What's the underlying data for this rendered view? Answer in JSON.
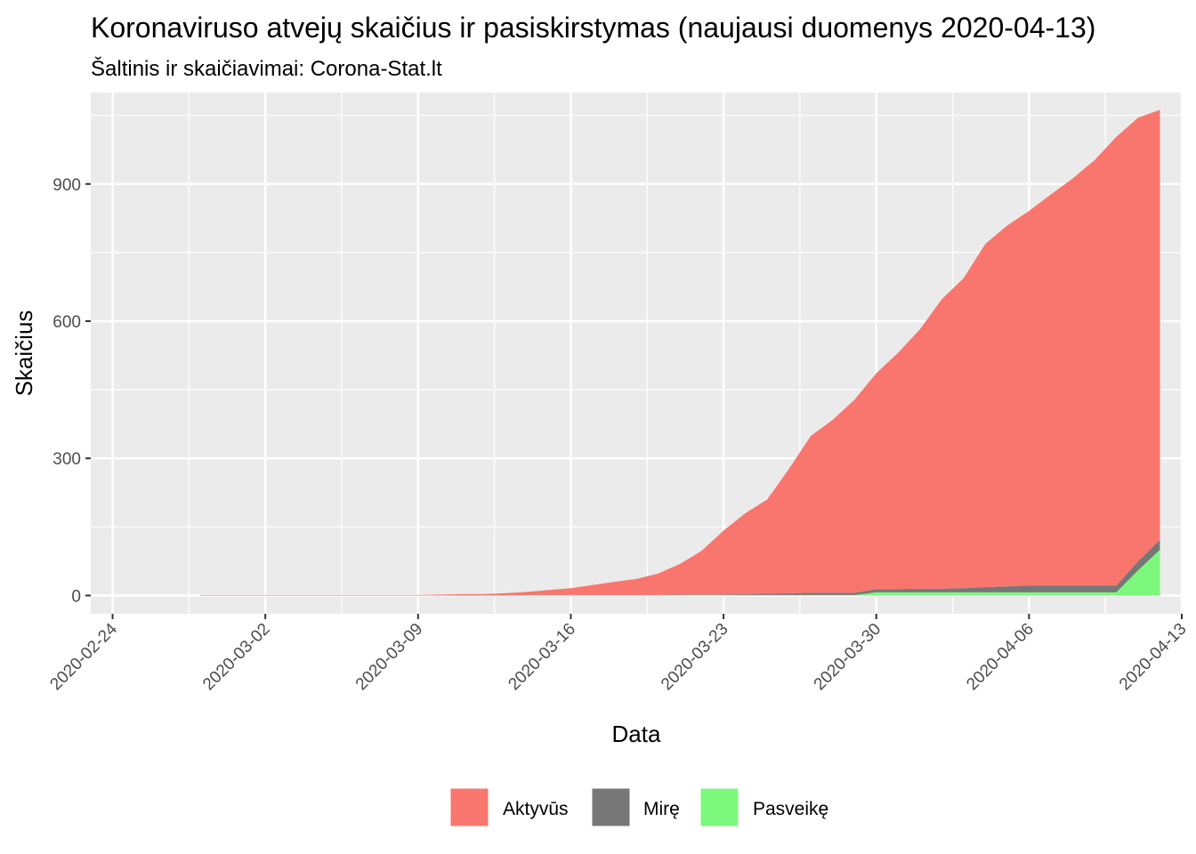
{
  "chart_data": {
    "type": "area",
    "stacked": true,
    "title": "Koronaviruso atvejų skaičius ir pasiskirstymas (naujausi duomenys 2020-04-13)",
    "subtitle": "Šaltinis ir skaičiavimai: Corona-Stat.lt",
    "xlabel": "Data",
    "ylabel": "Skaičius",
    "xlim": [
      "2020-02-23",
      "2020-04-13"
    ],
    "ylim": [
      -40,
      1100
    ],
    "x_ticks": [
      "2020-02-24",
      "2020-03-02",
      "2020-03-09",
      "2020-03-16",
      "2020-03-23",
      "2020-03-30",
      "2020-04-06",
      "2020-04-13"
    ],
    "y_ticks": [
      0,
      300,
      600,
      900
    ],
    "grid": true,
    "legend_position": "bottom",
    "x": [
      "2020-02-28",
      "2020-02-29",
      "2020-03-01",
      "2020-03-02",
      "2020-03-03",
      "2020-03-04",
      "2020-03-05",
      "2020-03-06",
      "2020-03-07",
      "2020-03-08",
      "2020-03-09",
      "2020-03-10",
      "2020-03-11",
      "2020-03-12",
      "2020-03-13",
      "2020-03-14",
      "2020-03-15",
      "2020-03-16",
      "2020-03-17",
      "2020-03-18",
      "2020-03-19",
      "2020-03-20",
      "2020-03-21",
      "2020-03-22",
      "2020-03-23",
      "2020-03-24",
      "2020-03-25",
      "2020-03-26",
      "2020-03-27",
      "2020-03-28",
      "2020-03-29",
      "2020-03-30",
      "2020-03-31",
      "2020-04-01",
      "2020-04-02",
      "2020-04-03",
      "2020-04-04",
      "2020-04-05",
      "2020-04-06",
      "2020-04-07",
      "2020-04-08",
      "2020-04-09",
      "2020-04-10",
      "2020-04-11",
      "2020-04-12"
    ],
    "series": [
      {
        "name": "Pasveikę",
        "color": "#7CF97C",
        "values": [
          0,
          0,
          0,
          0,
          0,
          0,
          0,
          0,
          0,
          0,
          0,
          0,
          0,
          0,
          0,
          1,
          1,
          1,
          1,
          1,
          1,
          1,
          1,
          1,
          1,
          1,
          1,
          1,
          1,
          1,
          1,
          7,
          7,
          7,
          7,
          7,
          7,
          7,
          7,
          7,
          7,
          7,
          7,
          55,
          100
        ]
      },
      {
        "name": "Mirę",
        "color": "#777777",
        "values": [
          0,
          0,
          0,
          0,
          0,
          0,
          0,
          0,
          0,
          0,
          0,
          0,
          0,
          0,
          0,
          0,
          0,
          0,
          0,
          0,
          0,
          0,
          1,
          1,
          1,
          2,
          3,
          4,
          5,
          5,
          5,
          7,
          7,
          8,
          8,
          9,
          11,
          13,
          15,
          15,
          15,
          15,
          15,
          20,
          22
        ]
      },
      {
        "name": "Aktyvūs",
        "color": "#F8766D",
        "values": [
          1,
          1,
          1,
          1,
          1,
          1,
          1,
          1,
          1,
          1,
          1,
          2,
          3,
          3,
          5,
          7,
          11,
          15,
          22,
          29,
          35,
          47,
          67,
          96,
          140,
          177,
          206,
          272,
          343,
          378,
          422,
          472,
          517,
          567,
          633,
          678,
          751,
          789,
          819,
          855,
          890,
          930,
          981,
          970,
          940
        ]
      }
    ]
  }
}
